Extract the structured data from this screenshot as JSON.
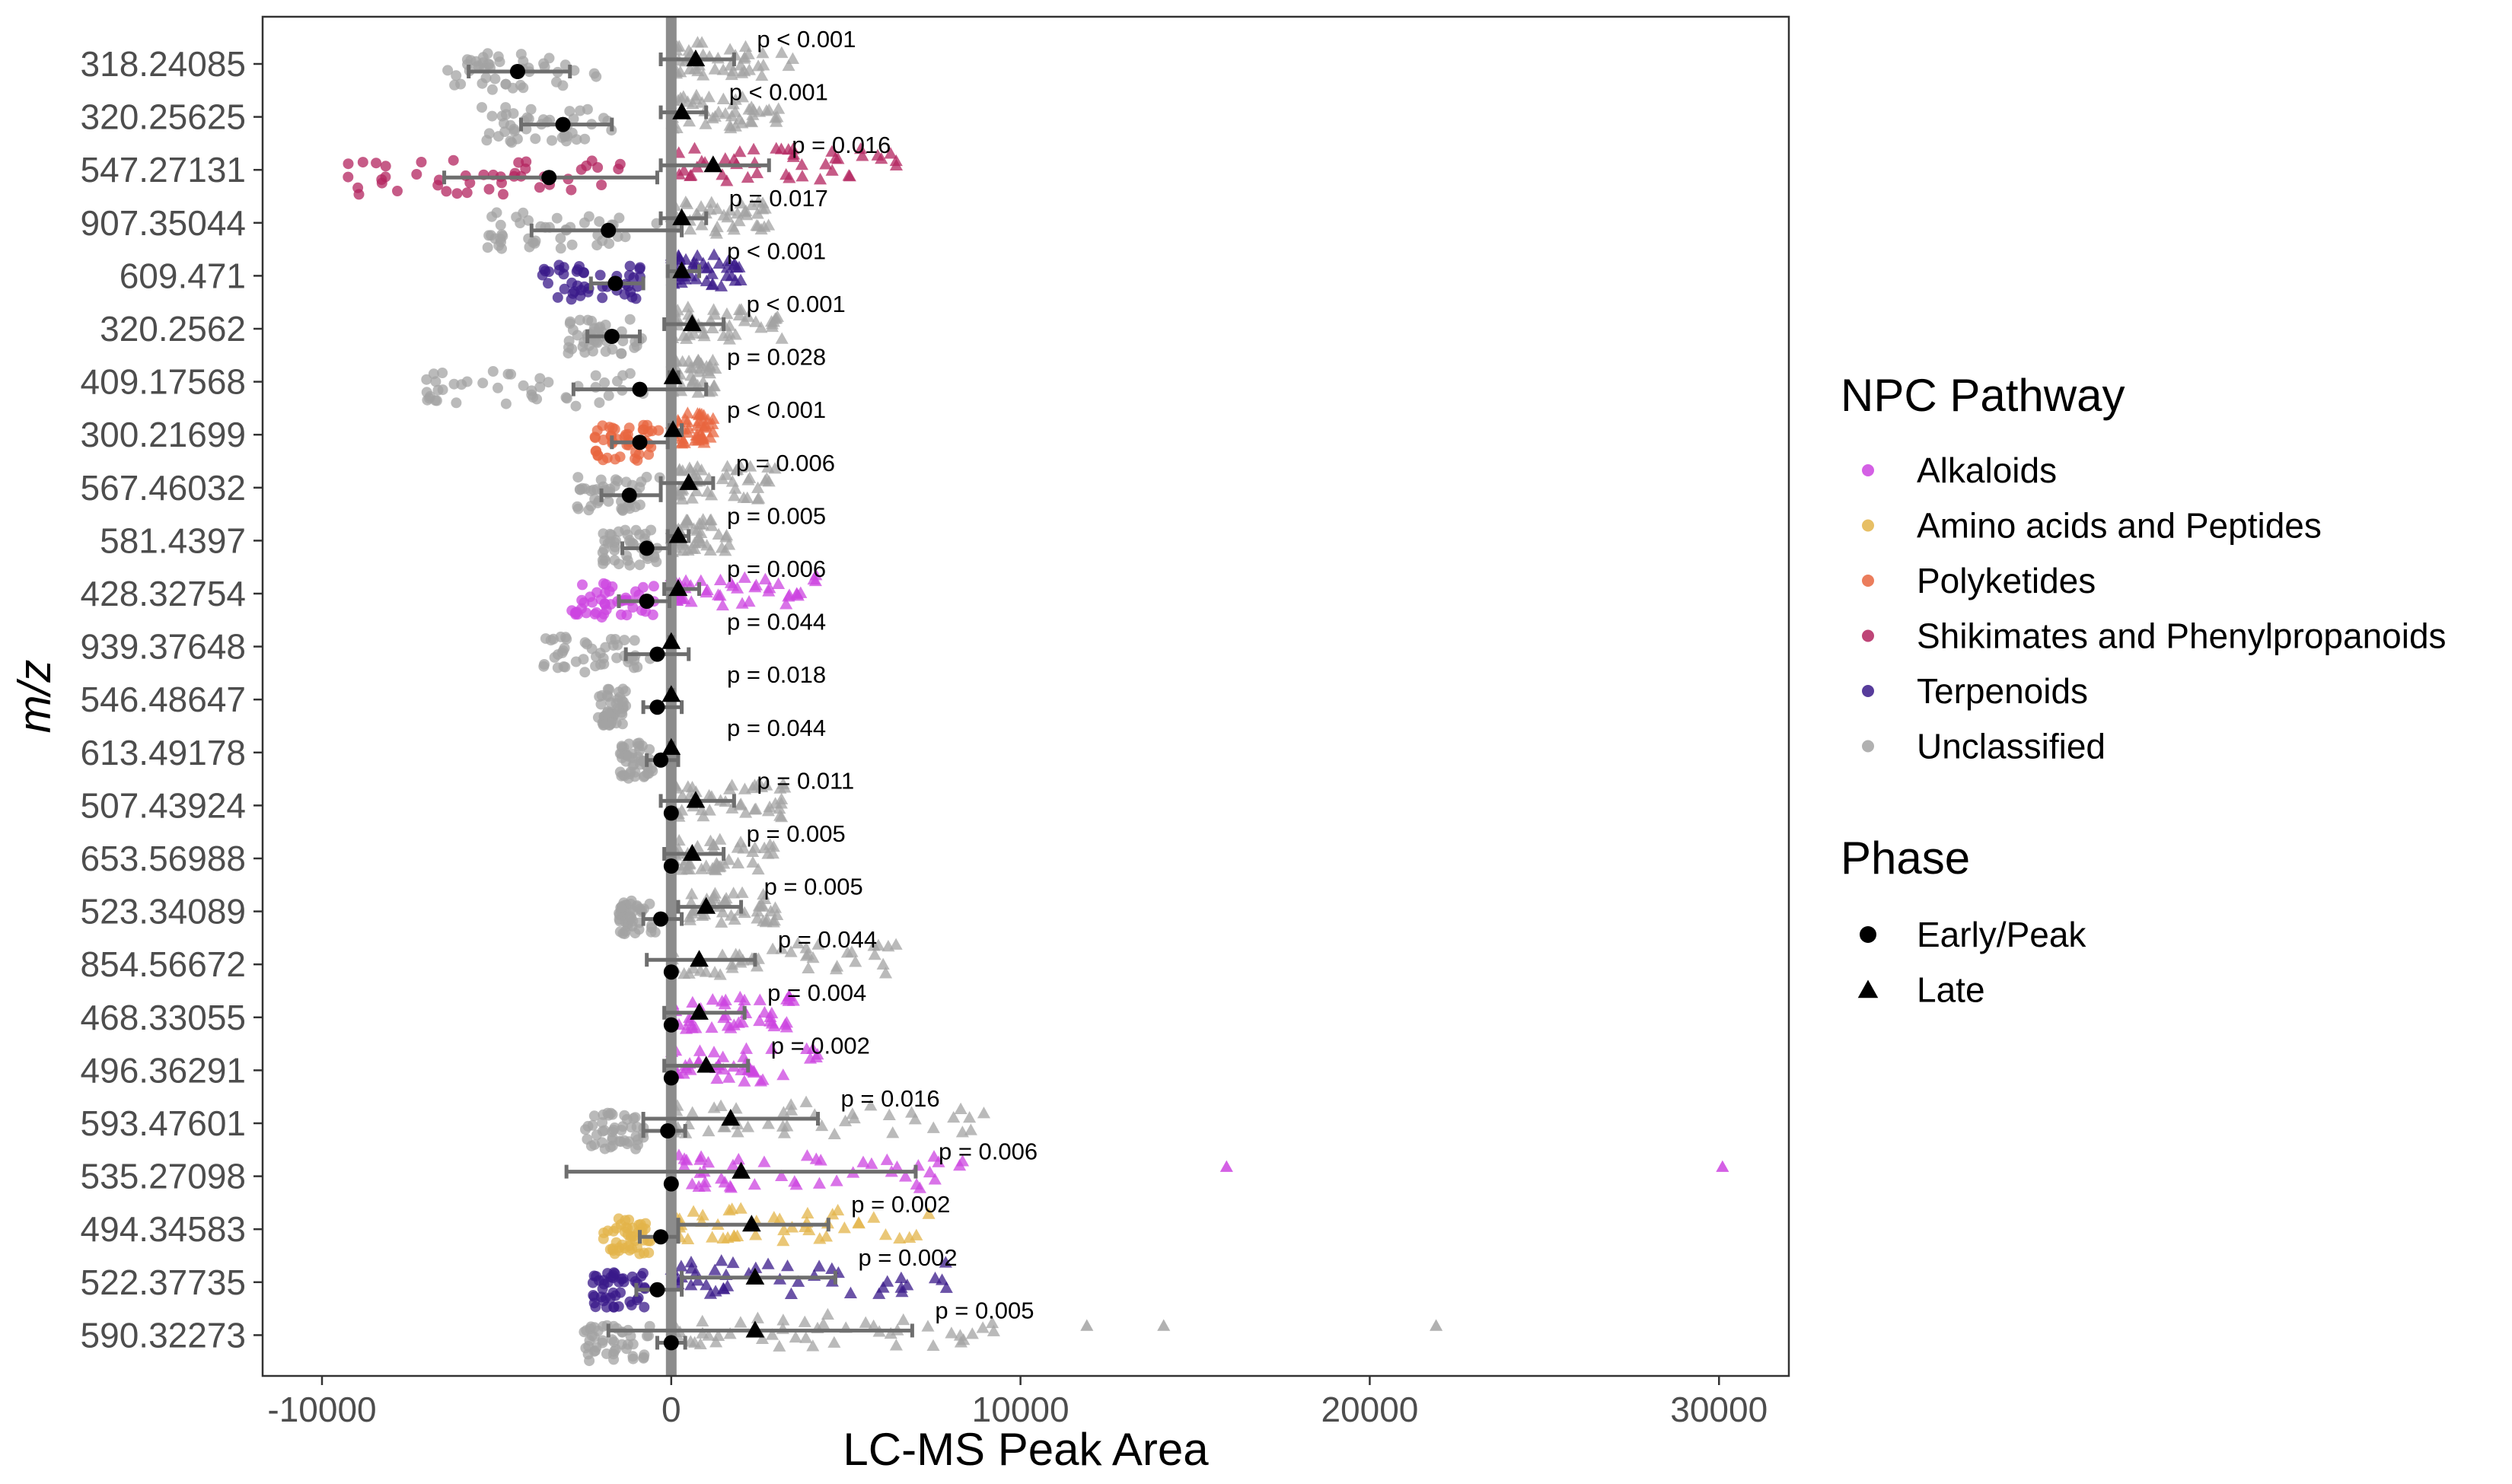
{
  "chart_data": {
    "type": "scatter",
    "xlabel": "LC-MS Peak Area",
    "ylabel": "m/z",
    "xlim": [
      -11700,
      32000
    ],
    "x_ticks": [
      -10000,
      0,
      10000,
      20000,
      30000
    ],
    "x_tick_labels": [
      "-10000",
      "0",
      "10000",
      "20000",
      "30000"
    ],
    "grid": false,
    "legend_position": "right",
    "colors": {
      "Alkaloids": "#CC44E0",
      "Amino acids and Peptides": "#E3B44A",
      "Polyketides": "#E8663F",
      "Shikimates and Phenylpropanoids": "#B3245F",
      "Terpenoids": "#3A1A8A",
      "Unclassified": "#A3A3A3",
      "summary": "#000000",
      "error_bar": "#6E6E6E",
      "zero_line": "#8C8C8C"
    },
    "legend": {
      "pathway_title": "NPC Pathway",
      "pathways": [
        "Alkaloids",
        "Amino acids and Peptides",
        "Polyketides",
        "Shikimates and Phenylpropanoids",
        "Terpenoids",
        "Unclassified"
      ],
      "phase_title": "Phase",
      "phases": [
        {
          "name": "Early/Peak",
          "shape": "circle"
        },
        {
          "name": "Late",
          "shape": "triangle"
        }
      ]
    },
    "categories": [
      {
        "mz": "318.24085",
        "pathway": "Unclassified",
        "p": "p < 0.001",
        "early": {
          "mean": -4400,
          "lo": -5800,
          "hi": -2900,
          "spread": [
            -6500,
            -2000
          ]
        },
        "late": {
          "mean": 700,
          "lo": -300,
          "hi": 1800,
          "spread": [
            0,
            3500
          ],
          "max": 3500
        }
      },
      {
        "mz": "320.25625",
        "pathway": "Unclassified",
        "p": "p < 0.001",
        "early": {
          "mean": -3100,
          "lo": -4300,
          "hi": -1700,
          "spread": [
            -5500,
            -1500
          ]
        },
        "late": {
          "mean": 300,
          "lo": -300,
          "hi": 1000,
          "spread": [
            0,
            3100
          ],
          "max": 3100
        }
      },
      {
        "mz": "547.27131",
        "pathway": "Shikimates and Phenylpropanoids",
        "p": "p = 0.016",
        "early": {
          "mean": -3500,
          "lo": -6500,
          "hi": -400,
          "spread": [
            -9500,
            -1200
          ]
        },
        "late": {
          "mean": 1200,
          "lo": -300,
          "hi": 2800,
          "spread": [
            0,
            6800
          ],
          "max": 6800
        }
      },
      {
        "mz": "907.35044",
        "pathway": "Unclassified",
        "p": "p = 0.017",
        "early": {
          "mean": -1800,
          "lo": -4000,
          "hi": 300,
          "spread": [
            -5300,
            -300
          ]
        },
        "late": {
          "mean": 300,
          "lo": -300,
          "hi": 1000,
          "spread": [
            0,
            2900
          ],
          "max": 2900
        }
      },
      {
        "mz": "609.471",
        "pathway": "Terpenoids",
        "p": "p < 0.001",
        "early": {
          "mean": -1600,
          "lo": -2300,
          "hi": -800,
          "spread": [
            -3900,
            -800
          ]
        },
        "late": {
          "mean": 300,
          "lo": -100,
          "hi": 800,
          "spread": [
            0,
            2000
          ],
          "max": 2000
        }
      },
      {
        "mz": "320.2562",
        "pathway": "Unclassified",
        "p": "p < 0.001",
        "early": {
          "mean": -1700,
          "lo": -2400,
          "hi": -900,
          "spread": [
            -3000,
            -800
          ]
        },
        "late": {
          "mean": 600,
          "lo": -200,
          "hi": 1500,
          "spread": [
            0,
            3300
          ],
          "max": 3300
        }
      },
      {
        "mz": "409.17568",
        "pathway": "Unclassified",
        "p": "p = 0.028",
        "early": {
          "mean": -900,
          "lo": -2800,
          "hi": 1000,
          "spread": [
            -7200,
            -500
          ]
        },
        "late": {
          "mean": 50,
          "lo": -50,
          "hi": 200,
          "spread": [
            0,
            1400
          ],
          "max": 1400
        }
      },
      {
        "mz": "300.21699",
        "pathway": "Polyketides",
        "p": "p < 0.001",
        "early": {
          "mean": -900,
          "lo": -1700,
          "hi": -100,
          "spread": [
            -2200,
            -300
          ]
        },
        "late": {
          "mean": 50,
          "lo": -50,
          "hi": 300,
          "spread": [
            0,
            1200
          ],
          "max": 1200
        }
      },
      {
        "mz": "567.46032",
        "pathway": "Unclassified",
        "p": "p = 0.006",
        "early": {
          "mean": -1200,
          "lo": -2000,
          "hi": -300,
          "spread": [
            -2700,
            -300
          ]
        },
        "late": {
          "mean": 500,
          "lo": -300,
          "hi": 1200,
          "spread": [
            0,
            3200
          ],
          "max": 3200
        }
      },
      {
        "mz": "581.4397",
        "pathway": "Unclassified",
        "p": "p = 0.005",
        "early": {
          "mean": -700,
          "lo": -1400,
          "hi": -50,
          "spread": [
            -2000,
            -300
          ]
        },
        "late": {
          "mean": 200,
          "lo": -100,
          "hi": 500,
          "spread": [
            0,
            1700
          ],
          "max": 1700
        }
      },
      {
        "mz": "428.32754",
        "pathway": "Alkaloids",
        "p": "p = 0.006",
        "early": {
          "mean": -700,
          "lo": -1500,
          "hi": -50,
          "spread": [
            -2900,
            -400
          ]
        },
        "late": {
          "mean": 200,
          "lo": -200,
          "hi": 800,
          "spread": [
            0,
            4200
          ],
          "max": 4200
        }
      },
      {
        "mz": "939.37648",
        "pathway": "Unclassified",
        "p": "p = 0.044",
        "early": {
          "mean": -400,
          "lo": -1300,
          "hi": 500,
          "spread": [
            -3700,
            -500
          ]
        },
        "late": {
          "mean": 0,
          "lo": -50,
          "hi": 50,
          "spread": [
            0,
            0
          ],
          "max": 0
        }
      },
      {
        "mz": "546.48647",
        "pathway": "Unclassified",
        "p": "p = 0.018",
        "early": {
          "mean": -400,
          "lo": -800,
          "hi": 300,
          "spread": [
            -2100,
            -1300
          ]
        },
        "late": {
          "mean": 0,
          "lo": -50,
          "hi": 50,
          "spread": [
            0,
            0
          ],
          "max": 0
        }
      },
      {
        "mz": "613.49178",
        "pathway": "Unclassified",
        "p": "p = 0.044",
        "early": {
          "mean": -300,
          "lo": -700,
          "hi": 200,
          "spread": [
            -1500,
            -500
          ]
        },
        "late": {
          "mean": 0,
          "lo": -50,
          "hi": 50,
          "spread": [
            0,
            0
          ],
          "max": 0
        }
      },
      {
        "mz": "507.43924",
        "pathway": "Unclassified",
        "p": "p = 0.011",
        "early": {
          "mean": 0,
          "lo": -100,
          "hi": 100,
          "spread": [
            -1100,
            -1100
          ]
        },
        "late": {
          "mean": 700,
          "lo": -300,
          "hi": 1800,
          "spread": [
            0,
            3300
          ],
          "max": 3300
        }
      },
      {
        "mz": "653.56988",
        "pathway": "Unclassified",
        "p": "p = 0.005",
        "early": {
          "mean": 0,
          "lo": -50,
          "hi": 50,
          "spread": [
            0,
            0
          ]
        },
        "late": {
          "mean": 600,
          "lo": -200,
          "hi": 1500,
          "spread": [
            0,
            3000
          ],
          "max": 3000
        }
      },
      {
        "mz": "523.34089",
        "pathway": "Unclassified",
        "p": "p = 0.005",
        "early": {
          "mean": -300,
          "lo": -800,
          "hi": 300,
          "spread": [
            -1500,
            -400
          ]
        },
        "late": {
          "mean": 1000,
          "lo": 200,
          "hi": 2000,
          "spread": [
            500,
            3100
          ],
          "max": 3100
        }
      },
      {
        "mz": "854.56672",
        "pathway": "Unclassified",
        "p": "p = 0.044",
        "early": {
          "mean": 0,
          "lo": -50,
          "hi": 50,
          "spread": [
            0,
            0
          ]
        },
        "late": {
          "mean": 800,
          "lo": -700,
          "hi": 2400,
          "spread": [
            0,
            6500
          ],
          "max": 6500
        }
      },
      {
        "mz": "468.33055",
        "pathway": "Alkaloids",
        "p": "p = 0.004",
        "early": {
          "mean": 0,
          "lo": -50,
          "hi": 50,
          "spread": [
            0,
            0
          ]
        },
        "late": {
          "mean": 800,
          "lo": -200,
          "hi": 2100,
          "spread": [
            0,
            3500
          ],
          "max": 3500
        }
      },
      {
        "mz": "496.36291",
        "pathway": "Alkaloids",
        "p": "p = 0.002",
        "early": {
          "mean": 0,
          "lo": -50,
          "hi": 50,
          "spread": [
            0,
            0
          ]
        },
        "late": {
          "mean": 1000,
          "lo": -200,
          "hi": 2200,
          "spread": [
            0,
            4300
          ],
          "max": 4300
        }
      },
      {
        "mz": "593.47601",
        "pathway": "Unclassified",
        "p": "p = 0.016",
        "early": {
          "mean": -100,
          "lo": -800,
          "hi": 400,
          "spread": [
            -2500,
            -500
          ]
        },
        "late": {
          "mean": 1700,
          "lo": -800,
          "hi": 4200,
          "spread": [
            0,
            9200
          ],
          "max": 9200
        }
      },
      {
        "mz": "535.27098",
        "pathway": "Alkaloids",
        "p": "p = 0.006",
        "early": {
          "mean": 0,
          "lo": -50,
          "hi": 50,
          "spread": [
            0,
            0
          ]
        },
        "late": {
          "mean": 2000,
          "lo": -3000,
          "hi": 7000,
          "spread": [
            0,
            8600
          ],
          "max": 30100,
          "outliers": [
            15900,
            30100
          ]
        }
      },
      {
        "mz": "494.34583",
        "pathway": "Amino acids and Peptides",
        "p": "p = 0.002",
        "early": {
          "mean": -300,
          "lo": -900,
          "hi": 200,
          "spread": [
            -2000,
            -500
          ]
        },
        "late": {
          "mean": 2300,
          "lo": 200,
          "hi": 4500,
          "spread": [
            0,
            7400
          ],
          "max": 7400
        }
      },
      {
        "mz": "522.37735",
        "pathway": "Terpenoids",
        "p": "p = 0.002",
        "early": {
          "mean": -400,
          "lo": -1000,
          "hi": 300,
          "spread": [
            -2300,
            -500
          ]
        },
        "late": {
          "mean": 2400,
          "lo": 300,
          "hi": 4700,
          "spread": [
            0,
            7900
          ],
          "max": 7900
        }
      },
      {
        "mz": "590.32273",
        "pathway": "Unclassified",
        "p": "p = 0.005",
        "early": {
          "mean": 0,
          "lo": -400,
          "hi": 400,
          "spread": [
            -2500,
            -400
          ]
        },
        "late": {
          "mean": 2400,
          "lo": -1800,
          "hi": 6900,
          "spread": [
            0,
            9500
          ],
          "max": 21900,
          "outliers": [
            11900,
            14100,
            21900
          ]
        }
      }
    ]
  }
}
